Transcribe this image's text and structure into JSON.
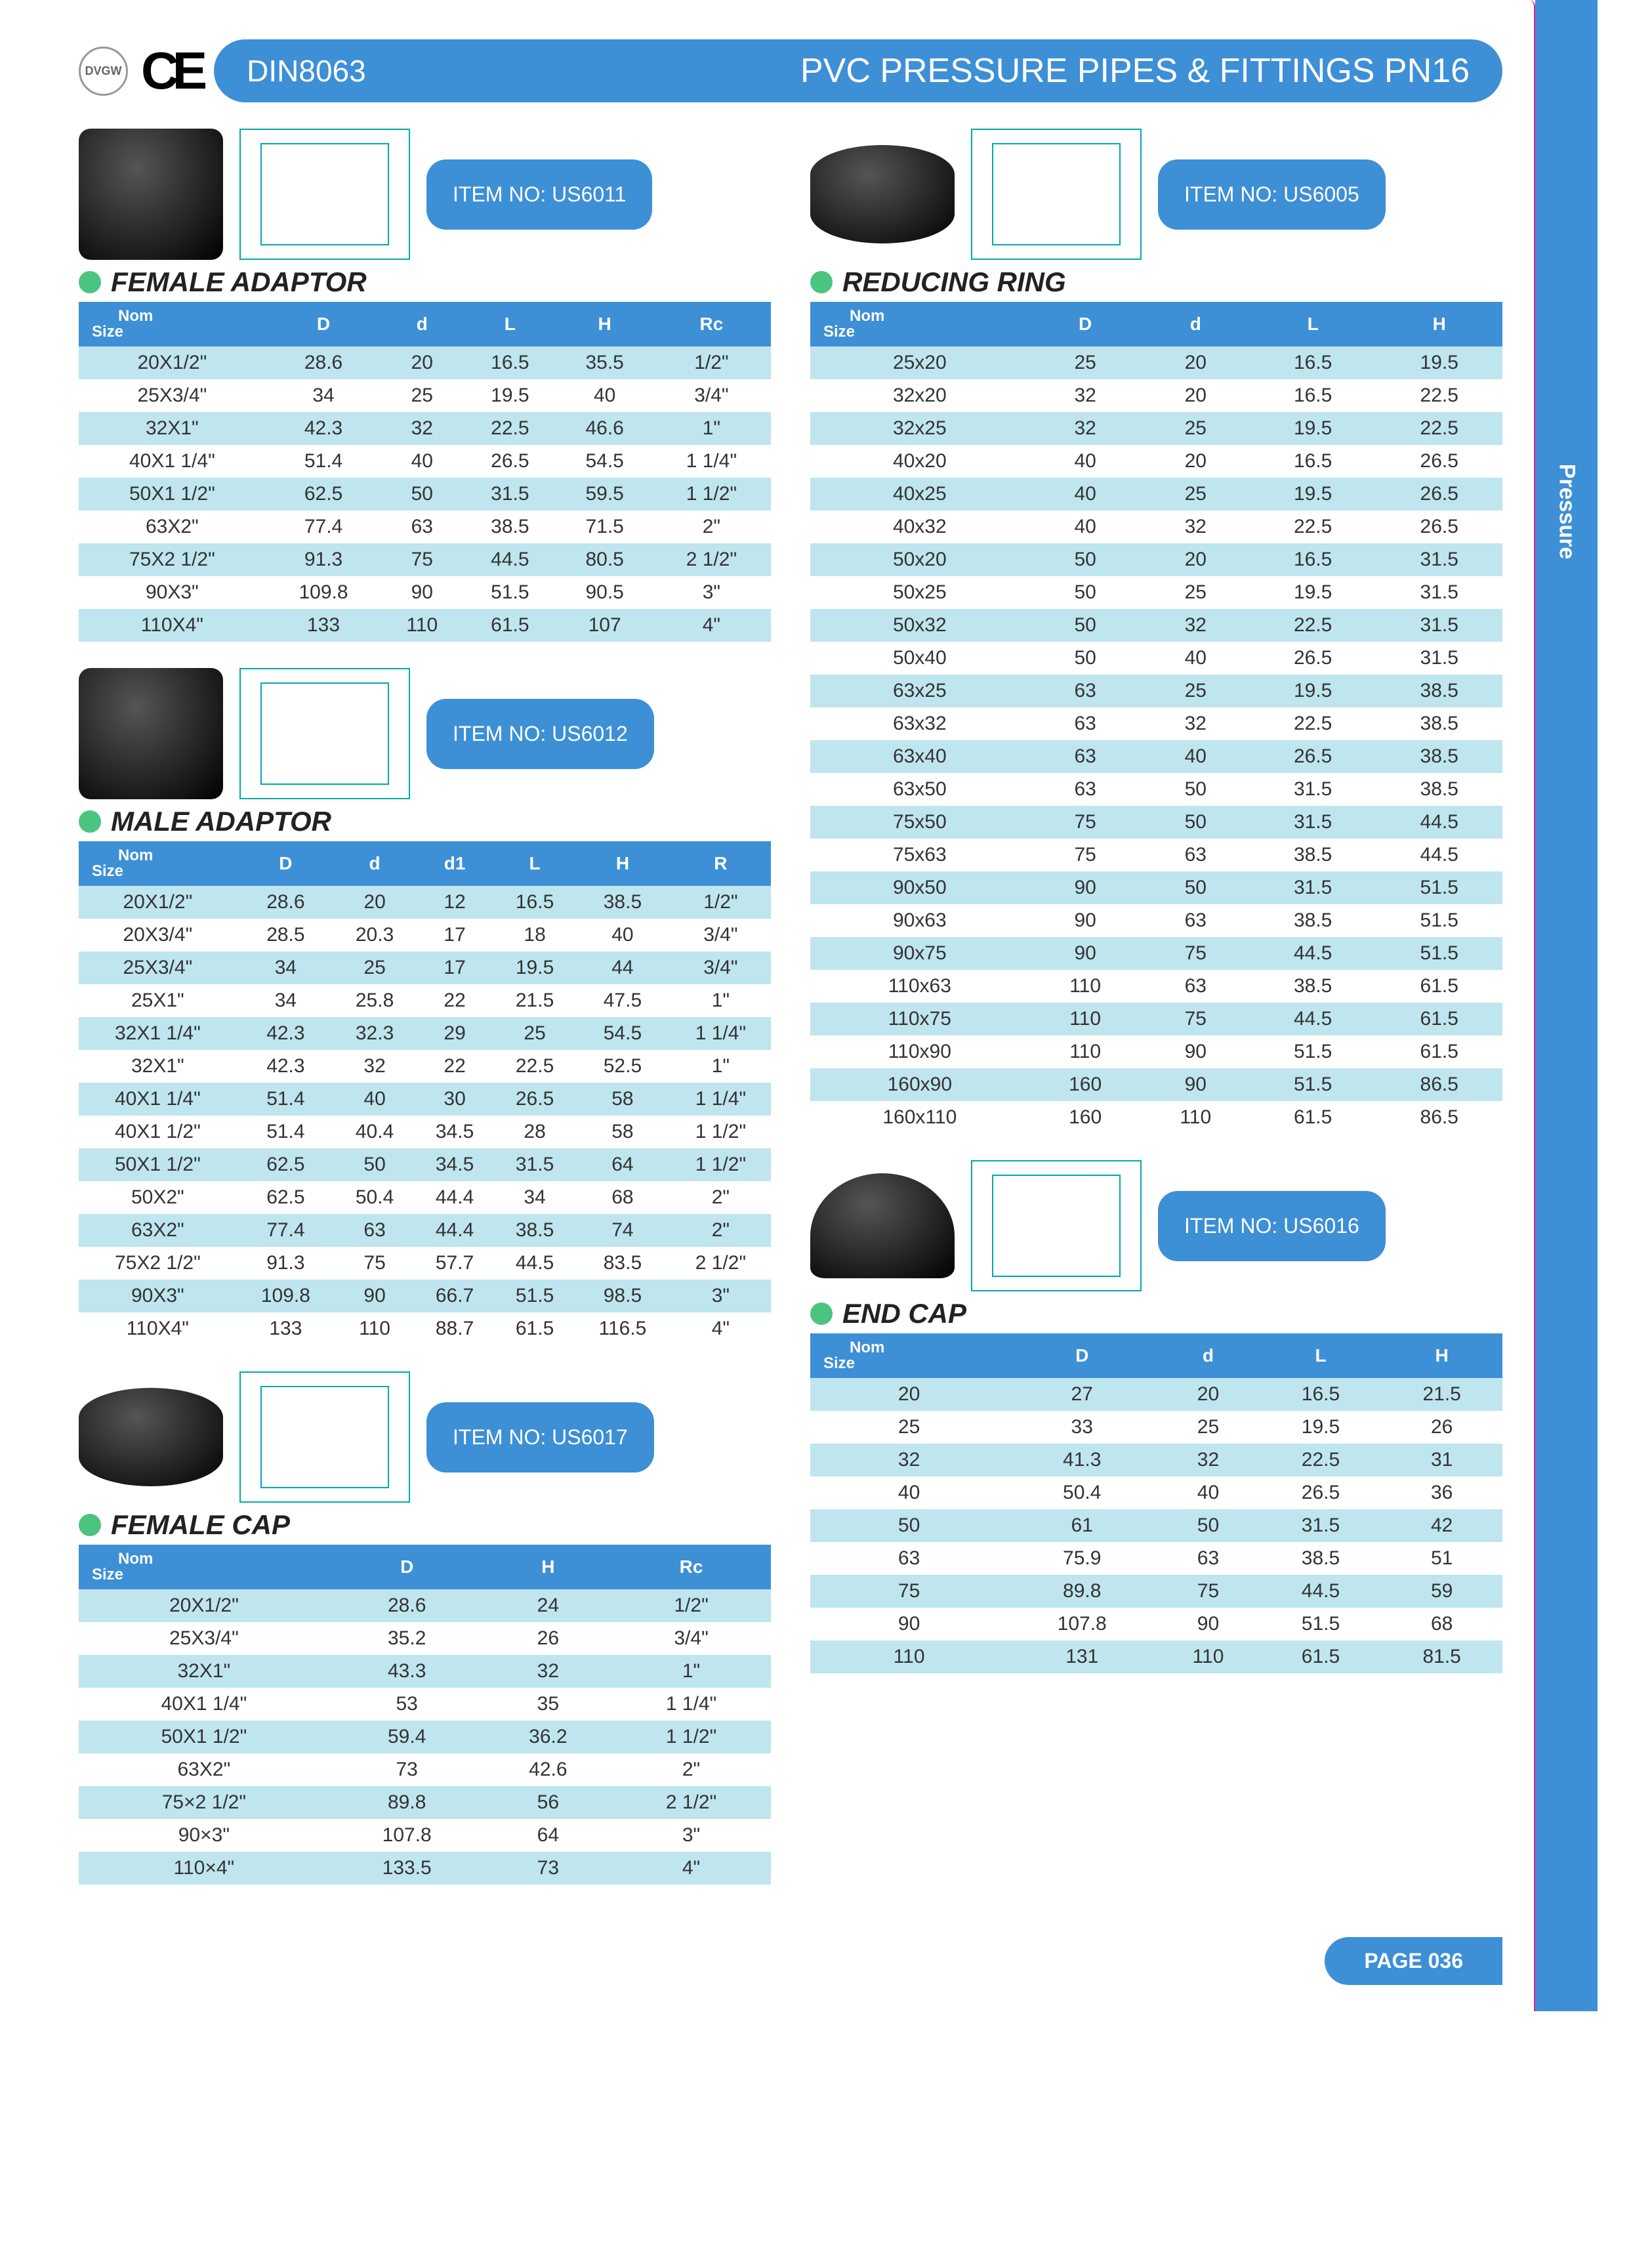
{
  "colors": {
    "brand_blue": "#3d8fd6",
    "row_alt": "#bfe5ef",
    "green_dot": "#4ac47f",
    "text": "#333333",
    "pink_border": "#e91e8c"
  },
  "header": {
    "ce": "CE",
    "badge": "DVGW",
    "din": "DIN8063",
    "title": "PVC PRESSURE PIPES & FITTINGS PN16"
  },
  "side_tab": "Pressure",
  "page_number": "PAGE 036",
  "nom_label": "Nom",
  "size_label": "Size",
  "female_adaptor": {
    "item_no": "ITEM NO: US6011",
    "title": "FEMALE ADAPTOR",
    "columns": [
      "",
      "D",
      "d",
      "L",
      "H",
      "Rc"
    ],
    "rows": [
      [
        "20X1/2\"",
        "28.6",
        "20",
        "16.5",
        "35.5",
        "1/2\""
      ],
      [
        "25X3/4\"",
        "34",
        "25",
        "19.5",
        "40",
        "3/4\""
      ],
      [
        "32X1\"",
        "42.3",
        "32",
        "22.5",
        "46.6",
        "1\""
      ],
      [
        "40X1 1/4\"",
        "51.4",
        "40",
        "26.5",
        "54.5",
        "1 1/4\""
      ],
      [
        "50X1 1/2\"",
        "62.5",
        "50",
        "31.5",
        "59.5",
        "1 1/2\""
      ],
      [
        "63X2\"",
        "77.4",
        "63",
        "38.5",
        "71.5",
        "2\""
      ],
      [
        "75X2 1/2\"",
        "91.3",
        "75",
        "44.5",
        "80.5",
        "2 1/2\""
      ],
      [
        "90X3\"",
        "109.8",
        "90",
        "51.5",
        "90.5",
        "3\""
      ],
      [
        "110X4\"",
        "133",
        "110",
        "61.5",
        "107",
        "4\""
      ]
    ]
  },
  "male_adaptor": {
    "item_no": "ITEM NO: US6012",
    "title": "MALE ADAPTOR",
    "columns": [
      "",
      "D",
      "d",
      "d1",
      "L",
      "H",
      "R"
    ],
    "rows": [
      [
        "20X1/2\"",
        "28.6",
        "20",
        "12",
        "16.5",
        "38.5",
        "1/2\""
      ],
      [
        "20X3/4\"",
        "28.5",
        "20.3",
        "17",
        "18",
        "40",
        "3/4\""
      ],
      [
        "25X3/4\"",
        "34",
        "25",
        "17",
        "19.5",
        "44",
        "3/4\""
      ],
      [
        "25X1\"",
        "34",
        "25.8",
        "22",
        "21.5",
        "47.5",
        "1\""
      ],
      [
        "32X1 1/4\"",
        "42.3",
        "32.3",
        "29",
        "25",
        "54.5",
        "1 1/4\""
      ],
      [
        "32X1\"",
        "42.3",
        "32",
        "22",
        "22.5",
        "52.5",
        "1\""
      ],
      [
        "40X1 1/4\"",
        "51.4",
        "40",
        "30",
        "26.5",
        "58",
        "1 1/4\""
      ],
      [
        "40X1 1/2\"",
        "51.4",
        "40.4",
        "34.5",
        "28",
        "58",
        "1 1/2\""
      ],
      [
        "50X1 1/2\"",
        "62.5",
        "50",
        "34.5",
        "31.5",
        "64",
        "1 1/2\""
      ],
      [
        "50X2\"",
        "62.5",
        "50.4",
        "44.4",
        "34",
        "68",
        "2\""
      ],
      [
        "63X2\"",
        "77.4",
        "63",
        "44.4",
        "38.5",
        "74",
        "2\""
      ],
      [
        "75X2 1/2\"",
        "91.3",
        "75",
        "57.7",
        "44.5",
        "83.5",
        "2 1/2\""
      ],
      [
        "90X3\"",
        "109.8",
        "90",
        "66.7",
        "51.5",
        "98.5",
        "3\""
      ],
      [
        "110X4\"",
        "133",
        "110",
        "88.7",
        "61.5",
        "116.5",
        "4\""
      ]
    ]
  },
  "female_cap": {
    "item_no": "ITEM NO: US6017",
    "title": "FEMALE CAP",
    "columns": [
      "",
      "D",
      "H",
      "Rc"
    ],
    "rows": [
      [
        "20X1/2\"",
        "28.6",
        "24",
        "1/2\""
      ],
      [
        "25X3/4\"",
        "35.2",
        "26",
        "3/4\""
      ],
      [
        "32X1\"",
        "43.3",
        "32",
        "1\""
      ],
      [
        "40X1 1/4\"",
        "53",
        "35",
        "1 1/4\""
      ],
      [
        "50X1 1/2\"",
        "59.4",
        "36.2",
        "1 1/2\""
      ],
      [
        "63X2\"",
        "73",
        "42.6",
        "2\""
      ],
      [
        "75×2 1/2\"",
        "89.8",
        "56",
        "2 1/2\""
      ],
      [
        "90×3\"",
        "107.8",
        "64",
        "3\""
      ],
      [
        "110×4\"",
        "133.5",
        "73",
        "4\""
      ]
    ]
  },
  "reducing_ring": {
    "item_no": "ITEM NO: US6005",
    "title": "REDUCING RING",
    "columns": [
      "",
      "D",
      "d",
      "L",
      "H"
    ],
    "rows": [
      [
        "25x20",
        "25",
        "20",
        "16.5",
        "19.5"
      ],
      [
        "32x20",
        "32",
        "20",
        "16.5",
        "22.5"
      ],
      [
        "32x25",
        "32",
        "25",
        "19.5",
        "22.5"
      ],
      [
        "40x20",
        "40",
        "20",
        "16.5",
        "26.5"
      ],
      [
        "40x25",
        "40",
        "25",
        "19.5",
        "26.5"
      ],
      [
        "40x32",
        "40",
        "32",
        "22.5",
        "26.5"
      ],
      [
        "50x20",
        "50",
        "20",
        "16.5",
        "31.5"
      ],
      [
        "50x25",
        "50",
        "25",
        "19.5",
        "31.5"
      ],
      [
        "50x32",
        "50",
        "32",
        "22.5",
        "31.5"
      ],
      [
        "50x40",
        "50",
        "40",
        "26.5",
        "31.5"
      ],
      [
        "63x25",
        "63",
        "25",
        "19.5",
        "38.5"
      ],
      [
        "63x32",
        "63",
        "32",
        "22.5",
        "38.5"
      ],
      [
        "63x40",
        "63",
        "40",
        "26.5",
        "38.5"
      ],
      [
        "63x50",
        "63",
        "50",
        "31.5",
        "38.5"
      ],
      [
        "75x50",
        "75",
        "50",
        "31.5",
        "44.5"
      ],
      [
        "75x63",
        "75",
        "63",
        "38.5",
        "44.5"
      ],
      [
        "90x50",
        "90",
        "50",
        "31.5",
        "51.5"
      ],
      [
        "90x63",
        "90",
        "63",
        "38.5",
        "51.5"
      ],
      [
        "90x75",
        "90",
        "75",
        "44.5",
        "51.5"
      ],
      [
        "110x63",
        "110",
        "63",
        "38.5",
        "61.5"
      ],
      [
        "110x75",
        "110",
        "75",
        "44.5",
        "61.5"
      ],
      [
        "110x90",
        "110",
        "90",
        "51.5",
        "61.5"
      ],
      [
        "160x90",
        "160",
        "90",
        "51.5",
        "86.5"
      ],
      [
        "160x110",
        "160",
        "110",
        "61.5",
        "86.5"
      ]
    ]
  },
  "end_cap": {
    "item_no": "ITEM NO: US6016",
    "title": "END CAP",
    "columns": [
      "",
      "D",
      "d",
      "L",
      "H"
    ],
    "rows": [
      [
        "20",
        "27",
        "20",
        "16.5",
        "21.5"
      ],
      [
        "25",
        "33",
        "25",
        "19.5",
        "26"
      ],
      [
        "32",
        "41.3",
        "32",
        "22.5",
        "31"
      ],
      [
        "40",
        "50.4",
        "40",
        "26.5",
        "36"
      ],
      [
        "50",
        "61",
        "50",
        "31.5",
        "42"
      ],
      [
        "63",
        "75.9",
        "63",
        "38.5",
        "51"
      ],
      [
        "75",
        "89.8",
        "75",
        "44.5",
        "59"
      ],
      [
        "90",
        "107.8",
        "90",
        "51.5",
        "68"
      ],
      [
        "110",
        "131",
        "110",
        "61.5",
        "81.5"
      ]
    ]
  }
}
